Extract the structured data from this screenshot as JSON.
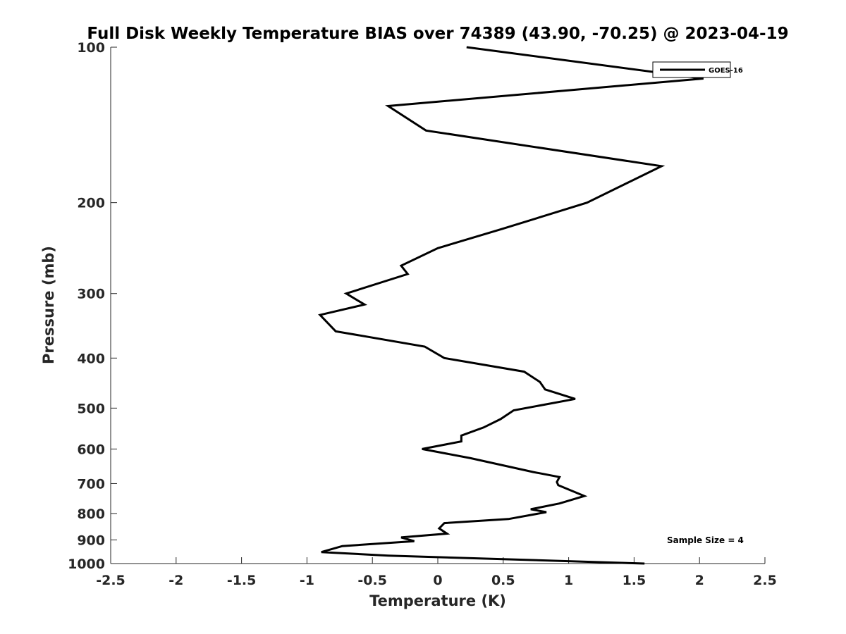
{
  "chart_data": {
    "type": "line",
    "title": "Full Disk Weekly Temperature BIAS over 74389 (43.90, -70.25) @ 2023-04-19",
    "xlabel": "Temperature (K)",
    "ylabel": "Pressure (mb)",
    "xlim": [
      -2.5,
      2.5
    ],
    "ylim": [
      1000,
      100
    ],
    "y_scale": "log",
    "y_reversed": true,
    "grid": false,
    "x_ticks": [
      -2.5,
      -2,
      -1.5,
      -1,
      -0.5,
      0,
      0.5,
      1,
      1.5,
      2,
      2.5
    ],
    "x_tick_labels": [
      "-2.5",
      "-2",
      "-1.5",
      "-1",
      "-0.5",
      "0",
      "0.5",
      "1",
      "1.5",
      "2",
      "2.5"
    ],
    "y_ticks": [
      100,
      200,
      300,
      400,
      500,
      600,
      700,
      800,
      900,
      1000
    ],
    "y_tick_labels": [
      "100",
      "200",
      "300",
      "400",
      "500",
      "600",
      "700",
      "800",
      "900",
      "1000"
    ],
    "legend_position": "top-right",
    "series": [
      {
        "name": "GOES-16",
        "color": "#000000",
        "x": [
          0.22,
          2.03,
          -0.38,
          -0.09,
          1.71,
          1.14,
          0.49,
          0.0,
          -0.28,
          -0.23,
          -0.7,
          -0.56,
          -0.9,
          -0.78,
          -0.1,
          0.05,
          0.66,
          0.78,
          0.82,
          1.05,
          0.58,
          0.48,
          0.35,
          0.18,
          0.18,
          -0.12,
          0.25,
          0.73,
          0.93,
          0.91,
          0.92,
          1.12,
          0.93,
          0.71,
          0.83,
          0.54,
          0.05,
          0.01,
          0.07,
          -0.28,
          -0.18,
          -0.73,
          -0.89,
          -0.38,
          1.58
        ],
        "y": [
          100,
          115,
          130,
          145,
          170,
          200,
          225,
          245,
          265,
          275,
          300,
          315,
          330,
          355,
          380,
          400,
          425,
          445,
          460,
          480,
          505,
          525,
          545,
          565,
          580,
          600,
          625,
          665,
          680,
          695,
          705,
          740,
          765,
          785,
          795,
          820,
          835,
          855,
          875,
          890,
          905,
          925,
          950,
          965,
          1000
        ]
      }
    ],
    "annotations": [
      "Sample Size = 4"
    ]
  }
}
